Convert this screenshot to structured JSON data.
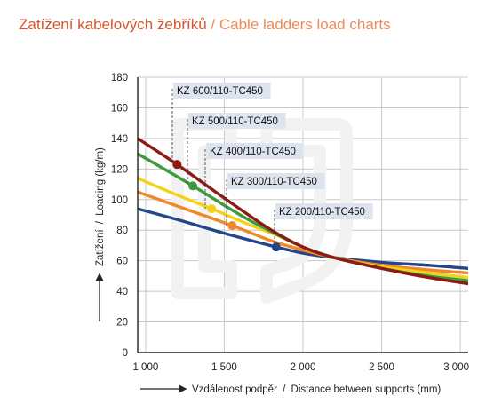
{
  "title": {
    "cz": "Zatížení kabelových žebříků",
    "separator": "/",
    "en": "Cable ladders load charts"
  },
  "colors": {
    "title_cz": "#d6562b",
    "title_en": "#ee8a55",
    "callout_bg": "#dde3ef",
    "grid": "#c8c8c8",
    "axis": "#222222"
  },
  "chart_data": {
    "type": "line",
    "xlabel": {
      "cz": "Vzdálenost podpěr",
      "sep": "/",
      "en": "Distance between supports (mm)"
    },
    "ylabel": {
      "cz": "Zatížení",
      "sep": "/",
      "en": "Loading (kg/m)"
    },
    "xlim": [
      950,
      3050
    ],
    "ylim": [
      0,
      180
    ],
    "x_ticks": [
      1000,
      1500,
      2000,
      2500,
      3000
    ],
    "x_tick_labels": [
      "1 000",
      "1 500",
      "2 000",
      "2 500",
      "3 000"
    ],
    "y_ticks": [
      0,
      20,
      40,
      60,
      80,
      100,
      120,
      140,
      160,
      180
    ],
    "y_tick_labels": [
      "0",
      "20",
      "40",
      "60",
      "80",
      "100",
      "120",
      "140",
      "160",
      "180"
    ],
    "grid": true,
    "series": [
      {
        "name": "KZ 600/110-TC450",
        "color": "#8e1a14",
        "x": [
          950,
          1200,
          1500,
          1800,
          2000,
          2200,
          2500,
          2800,
          3050
        ],
        "y": [
          140,
          123,
          101,
          80,
          69,
          62,
          55,
          49,
          45
        ],
        "marker": {
          "x": 1200,
          "y": 123
        }
      },
      {
        "name": "KZ 500/110-TC450",
        "color": "#3f9a3f",
        "x": [
          950,
          1300,
          1600,
          1800,
          2000,
          2200,
          2500,
          2800,
          3050
        ],
        "y": [
          130,
          109,
          90,
          79,
          69,
          62,
          55,
          50,
          47
        ],
        "marker": {
          "x": 1300,
          "y": 109
        }
      },
      {
        "name": "KZ 400/110-TC450",
        "color": "#f5d21a",
        "x": [
          950,
          1200,
          1420,
          1650,
          1850,
          2000,
          2200,
          2500,
          2800,
          3050
        ],
        "y": [
          114,
          103,
          94,
          84,
          76,
          69,
          62,
          56,
          52,
          49
        ],
        "marker": {
          "x": 1420,
          "y": 94
        }
      },
      {
        "name": "KZ 300/110-TC450",
        "color": "#f0882a",
        "x": [
          950,
          1250,
          1550,
          1800,
          2000,
          2200,
          2500,
          2800,
          3050
        ],
        "y": [
          105,
          94,
          83,
          73,
          67,
          62,
          57,
          54,
          52
        ],
        "marker": {
          "x": 1550,
          "y": 83
        }
      },
      {
        "name": "KZ 200/110-TC450",
        "color": "#24468a",
        "x": [
          950,
          1200,
          1500,
          1830,
          2000,
          2200,
          2500,
          2800,
          3050
        ],
        "y": [
          94,
          87,
          78,
          69,
          65,
          62,
          59,
          57,
          55
        ],
        "marker": {
          "x": 1830,
          "y": 69
        }
      }
    ]
  }
}
